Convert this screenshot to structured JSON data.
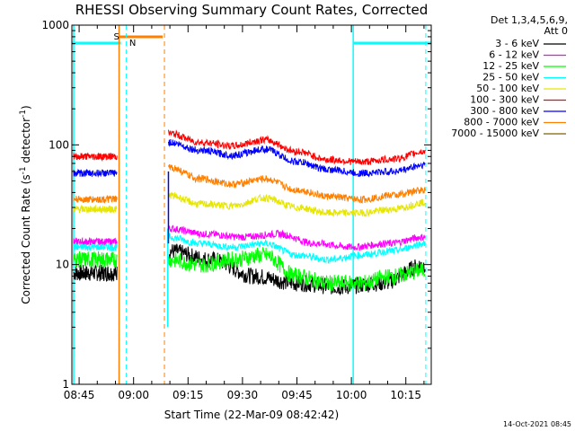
{
  "chart_data": {
    "type": "line",
    "title": "RHESSI Observing Summary Count Rates, Corrected",
    "xlabel": "Start Time (22-Mar-09 08:42:42)",
    "ylabel_main": "Corrected Count Rate (s",
    "ylabel_sup1": "-1",
    "ylabel_mid": " detector",
    "ylabel_sup2": "-1",
    "ylabel_end": ")",
    "yscale": "log",
    "ylim": [
      1,
      1000
    ],
    "xlim_minutes": [
      -2,
      97
    ],
    "y_ticks": [
      {
        "value": 1,
        "label": "1"
      },
      {
        "value": 10,
        "label": "10"
      },
      {
        "value": 100,
        "label": "100"
      },
      {
        "value": 1000,
        "label": "1000"
      }
    ],
    "x_ticks": [
      {
        "minute": 0,
        "label": "08:45"
      },
      {
        "minute": 15,
        "label": "09:00"
      },
      {
        "minute": 30,
        "label": "09:15"
      },
      {
        "minute": 45,
        "label": "09:30"
      },
      {
        "minute": 60,
        "label": "09:45"
      },
      {
        "minute": 75,
        "label": "10:00"
      },
      {
        "minute": 90,
        "label": "10:15"
      }
    ],
    "legend_header": [
      "Det 1,3,4,5,6,9,",
      "Att 0"
    ],
    "series": [
      {
        "name": "3 - 6 keV",
        "color": "#000000",
        "pre": 8.5,
        "post": [
          13,
          11,
          8,
          7,
          6.5,
          7,
          10
        ]
      },
      {
        "name": "6 - 12 keV",
        "color": "#ff00ff",
        "pre": 15.5,
        "post": [
          20,
          18,
          17,
          18,
          15,
          14,
          15,
          17
        ]
      },
      {
        "name": "12 - 25 keV",
        "color": "#00ff00",
        "pre": 11,
        "post": [
          11,
          10,
          11,
          12,
          8,
          7,
          7,
          8,
          9
        ]
      },
      {
        "name": "25 - 50 keV",
        "color": "#00ffff",
        "pre": 14,
        "post": [
          17,
          15,
          14,
          15,
          12,
          11,
          12,
          13,
          15
        ]
      },
      {
        "name": "50 - 100 keV",
        "color": "#e6e600",
        "pre": 29,
        "post": [
          38,
          32,
          31,
          36,
          30,
          27,
          27,
          29,
          33
        ]
      },
      {
        "name": "100 - 300 keV",
        "color": "#ff0000",
        "pre": 80,
        "post": [
          125,
          105,
          98,
          110,
          88,
          75,
          72,
          76,
          88
        ]
      },
      {
        "name": "300 - 800 keV",
        "color": "#0000ff",
        "pre": 58,
        "post": [
          105,
          90,
          82,
          92,
          72,
          62,
          58,
          60,
          68
        ]
      },
      {
        "name": "800 - 7000 keV",
        "color": "#ff8000",
        "pre": 35,
        "post": [
          65,
          52,
          47,
          52,
          42,
          37,
          35,
          38,
          42
        ]
      },
      {
        "name": "7000 - 15000 keV",
        "color": "#806000",
        "pre": null,
        "post": []
      }
    ],
    "flags": {
      "saa_label": "S",
      "night_label": "N"
    }
  },
  "footer": {
    "timestamp": "14-Oct-2021 08:45"
  }
}
